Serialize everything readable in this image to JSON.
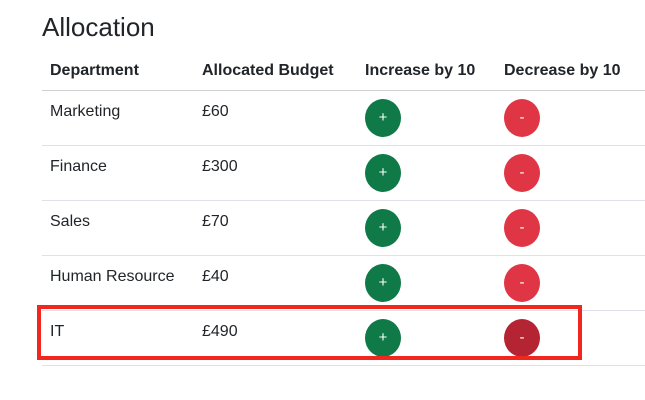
{
  "page": {
    "title": "Allocation"
  },
  "table": {
    "headers": [
      "Department",
      "Allocated Budget",
      "Increase by 10",
      "Decrease by 10"
    ],
    "rows": [
      {
        "department": "Marketing",
        "budget": "£60",
        "increase_label": "+",
        "decrease_label": "-"
      },
      {
        "department": "Finance",
        "budget": "£300",
        "increase_label": "+",
        "decrease_label": "-"
      },
      {
        "department": "Sales",
        "budget": "£70",
        "increase_label": "+",
        "decrease_label": "-"
      },
      {
        "department": "Human Resource",
        "budget": "£40",
        "increase_label": "+",
        "decrease_label": "-"
      },
      {
        "department": "IT",
        "budget": "£490",
        "increase_label": "+",
        "decrease_label": "-"
      }
    ]
  },
  "colors": {
    "increase_button": "#0f7a48",
    "decrease_button": "#e03545",
    "decrease_button_active": "#b52432",
    "highlight_box": "#f0261f"
  },
  "highlighted_row": "IT"
}
